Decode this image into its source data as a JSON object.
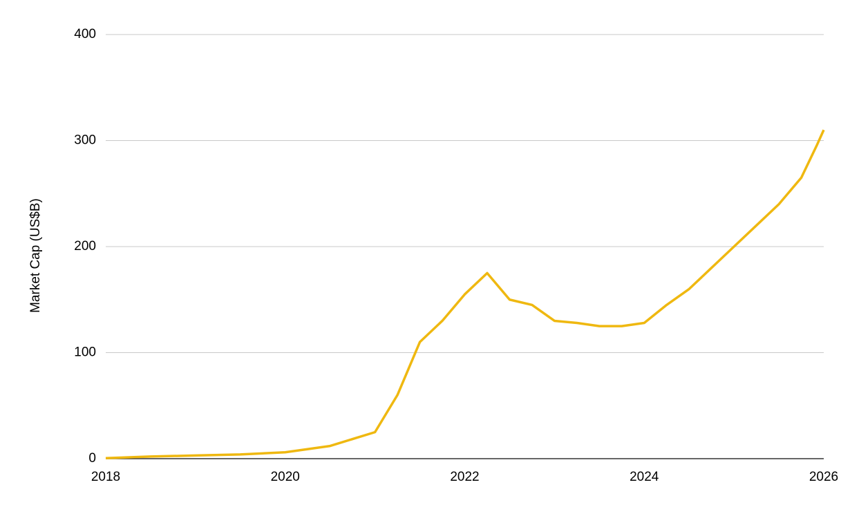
{
  "chart_data": {
    "type": "line",
    "y_label": "Market Cap (US$B)",
    "x": [
      2018,
      2018.5,
      2019,
      2019.5,
      2020,
      2020.5,
      2021,
      2021.25,
      2021.5,
      2021.75,
      2022,
      2022.25,
      2022.5,
      2022.75,
      2023,
      2023.25,
      2023.5,
      2023.75,
      2024,
      2024.25,
      2024.5,
      2024.75,
      2025,
      2025.25,
      2025.5,
      2025.75,
      2025.92,
      2026
    ],
    "series": [
      {
        "name": "Market Cap",
        "color": "#efb810",
        "values": [
          0.5,
          2,
          3,
          4,
          6,
          12,
          25,
          60,
          110,
          130,
          155,
          175,
          150,
          145,
          130,
          128,
          125,
          125,
          128,
          145,
          160,
          180,
          200,
          220,
          240,
          265,
          295,
          310
        ]
      }
    ],
    "xlim": [
      2018,
      2026
    ],
    "xticks": [
      2018,
      2020,
      2022,
      2024,
      2026
    ],
    "ylim": [
      0,
      400
    ],
    "yticks": [
      0,
      100,
      200,
      300,
      400
    ],
    "grid": true
  }
}
